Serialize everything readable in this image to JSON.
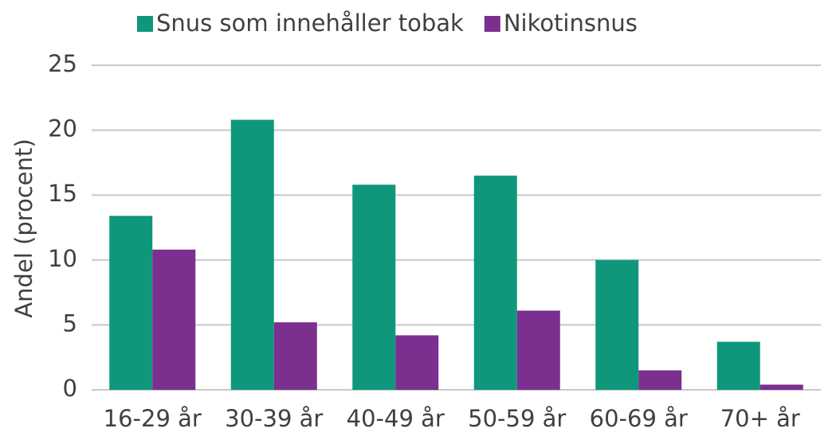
{
  "chart_data": {
    "type": "bar",
    "categories": [
      "16-29 år",
      "30-39 år",
      "40-49 år",
      "50-59 år",
      "60-69 år",
      "70+ år"
    ],
    "series": [
      {
        "name": "Snus som innehåller tobak",
        "color": "#0f977b",
        "values": [
          13.4,
          20.8,
          15.8,
          16.5,
          10.0,
          3.7
        ]
      },
      {
        "name": "Nikotinsnus",
        "color": "#7b2f8e",
        "values": [
          10.8,
          5.2,
          4.2,
          6.1,
          1.5,
          0.4
        ]
      }
    ],
    "y_label": "Andel (procent)",
    "ylim": [
      0,
      25
    ],
    "yticks": [
      0,
      5,
      10,
      15,
      20,
      25
    ],
    "grid": true,
    "legend": "top"
  }
}
